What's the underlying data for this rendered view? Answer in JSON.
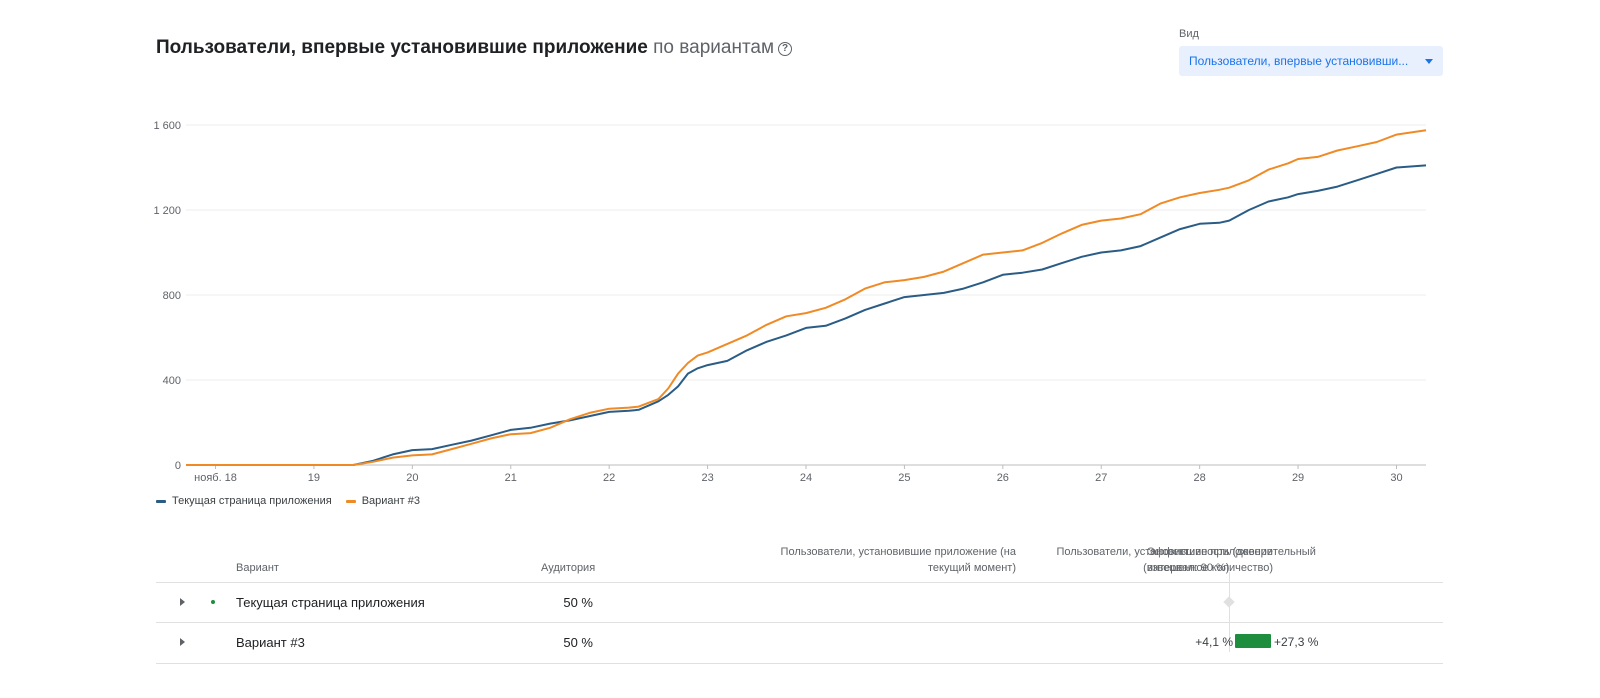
{
  "header": {
    "title": "Пользователи, впервые установившие приложение",
    "title_suffix": "по вариантам",
    "help_icon": "?"
  },
  "view": {
    "label": "Вид",
    "selected": "Пользователи, впервые установивши..."
  },
  "colors": {
    "series_current": "#2a5c86",
    "series_variant": "#f08a24",
    "positive": "#1e8e3e",
    "accent": "#1a73e8"
  },
  "chart_data": {
    "type": "line",
    "title": "Пользователи, впервые установившие приложение",
    "xlabel": "",
    "ylabel": "",
    "ylim": [
      0,
      1600
    ],
    "yticks": [
      0,
      400,
      800,
      1200,
      1600
    ],
    "ytick_labels": [
      "0",
      "400",
      "800",
      "1 200",
      "1 600"
    ],
    "xlim": [
      17.7,
      30.3
    ],
    "xticks": [
      18,
      19,
      20,
      21,
      22,
      23,
      24,
      25,
      26,
      27,
      28,
      29,
      30
    ],
    "xtick_labels": [
      "нояб. 18",
      "19",
      "20",
      "21",
      "22",
      "23",
      "24",
      "25",
      "26",
      "27",
      "28",
      "29",
      "30"
    ],
    "grid": true,
    "legend_position": "bottom-left",
    "series": [
      {
        "name": "Текущая страница приложения",
        "color": "#2a5c86",
        "x": [
          17.7,
          19.4,
          19.6,
          19.8,
          20.0,
          20.2,
          20.4,
          20.6,
          20.8,
          21.0,
          21.2,
          21.4,
          21.6,
          21.8,
          22.0,
          22.2,
          22.3,
          22.5,
          22.6,
          22.7,
          22.8,
          22.9,
          23.0,
          23.2,
          23.4,
          23.6,
          23.8,
          24.0,
          24.2,
          24.4,
          24.6,
          24.8,
          25.0,
          25.2,
          25.4,
          25.6,
          25.8,
          26.0,
          26.2,
          26.4,
          26.6,
          26.8,
          27.0,
          27.2,
          27.4,
          27.6,
          27.8,
          28.0,
          28.2,
          28.3,
          28.5,
          28.7,
          28.9,
          29.0,
          29.2,
          29.4,
          29.6,
          29.8,
          30.0,
          30.3
        ],
        "y": [
          0,
          0,
          20,
          50,
          70,
          75,
          95,
          115,
          140,
          165,
          175,
          195,
          210,
          230,
          250,
          255,
          260,
          300,
          330,
          370,
          430,
          455,
          470,
          490,
          540,
          580,
          610,
          645,
          655,
          690,
          730,
          760,
          790,
          800,
          810,
          830,
          860,
          895,
          905,
          920,
          950,
          980,
          1000,
          1010,
          1030,
          1070,
          1110,
          1135,
          1140,
          1150,
          1200,
          1240,
          1260,
          1275,
          1290,
          1310,
          1340,
          1370,
          1400,
          1410
        ]
      },
      {
        "name": "Вариант #3",
        "color": "#f08a24",
        "x": [
          17.7,
          19.4,
          19.6,
          19.8,
          20.0,
          20.2,
          20.4,
          20.6,
          20.8,
          21.0,
          21.2,
          21.4,
          21.6,
          21.8,
          22.0,
          22.2,
          22.3,
          22.5,
          22.6,
          22.7,
          22.8,
          22.9,
          23.0,
          23.2,
          23.4,
          23.6,
          23.8,
          24.0,
          24.2,
          24.4,
          24.6,
          24.8,
          25.0,
          25.2,
          25.4,
          25.6,
          25.8,
          26.0,
          26.2,
          26.4,
          26.6,
          26.8,
          27.0,
          27.2,
          27.4,
          27.6,
          27.8,
          28.0,
          28.2,
          28.3,
          28.5,
          28.7,
          28.9,
          29.0,
          29.2,
          29.4,
          29.6,
          29.8,
          30.0,
          30.3
        ],
        "y": [
          0,
          0,
          15,
          35,
          45,
          50,
          75,
          100,
          125,
          145,
          150,
          175,
          215,
          245,
          265,
          270,
          275,
          310,
          360,
          430,
          480,
          515,
          530,
          570,
          610,
          660,
          700,
          715,
          740,
          780,
          830,
          860,
          870,
          885,
          910,
          950,
          990,
          1000,
          1010,
          1045,
          1090,
          1130,
          1150,
          1160,
          1180,
          1230,
          1260,
          1280,
          1295,
          1305,
          1340,
          1390,
          1420,
          1440,
          1450,
          1480,
          1500,
          1520,
          1555,
          1575
        ]
      }
    ]
  },
  "table": {
    "headers": {
      "variant": "Вариант",
      "audience": "Аудитория",
      "installs_current_1": "Пользователи, установившие приложение (на",
      "installs_current_2": "текущий момент)",
      "installs_weighted_1": "Пользователи, установившие приложение",
      "installs_weighted_2": "(взвешенное количество)",
      "efficiency_1": "Эффективность (доверительный",
      "efficiency_2": "интервал: 90 %)"
    },
    "rows": [
      {
        "name": "Текущая страница приложения",
        "audience": "50 %"
      },
      {
        "name": "Вариант #3",
        "audience": "50 %",
        "eff_low": "+4,1 %",
        "eff_high": "+27,3 %"
      }
    ]
  }
}
